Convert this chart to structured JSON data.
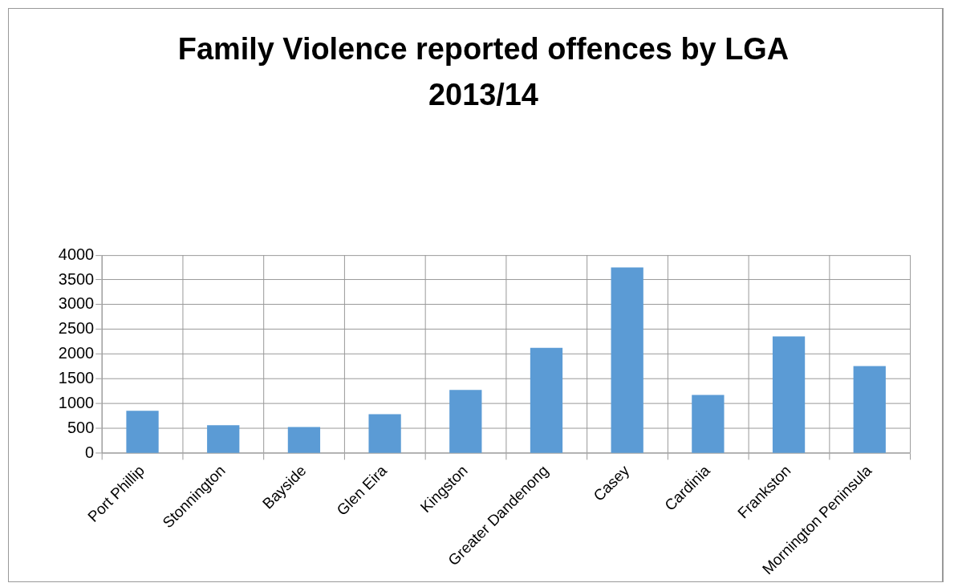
{
  "chart_data": {
    "type": "bar",
    "title": "Family Violence reported offences by LGA 2013/14",
    "categories": [
      "Port Phillip",
      "Stonnington",
      "Bayside",
      "Glen Eira",
      "Kingston",
      "Greater Dandenong",
      "Casey",
      "Cardinia",
      "Frankston",
      "Mornington Peninsula"
    ],
    "values": [
      860,
      570,
      530,
      790,
      1280,
      2130,
      3750,
      1180,
      2360,
      1760
    ],
    "color": "#5b9bd5",
    "ylim": [
      0,
      4000
    ],
    "yticks": [
      0,
      500,
      1000,
      1500,
      2000,
      2500,
      3000,
      3500,
      4000
    ],
    "grid": true,
    "legend": false
  }
}
